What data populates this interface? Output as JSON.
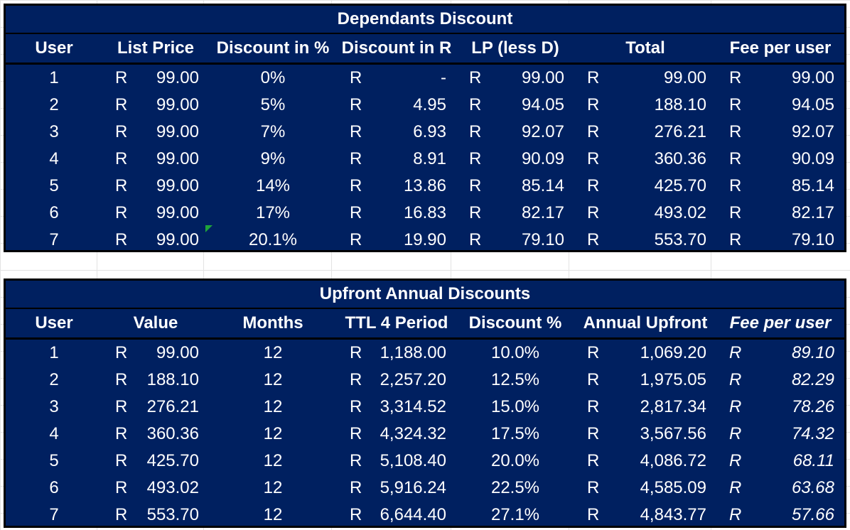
{
  "dependants": {
    "title": "Dependants Discount",
    "headers": [
      "User",
      "List Price",
      "Discount in %",
      "Discount in R",
      "LP (less D)",
      "Total",
      "Fee per user"
    ],
    "currency": "R",
    "rows": [
      {
        "user": "1",
        "list_price": "99.00",
        "discount_pct": "0%",
        "discount_r": "-",
        "lp_less_d": "99.00",
        "total": "99.00",
        "fee": "99.00"
      },
      {
        "user": "2",
        "list_price": "99.00",
        "discount_pct": "5%",
        "discount_r": "4.95",
        "lp_less_d": "94.05",
        "total": "188.10",
        "fee": "94.05"
      },
      {
        "user": "3",
        "list_price": "99.00",
        "discount_pct": "7%",
        "discount_r": "6.93",
        "lp_less_d": "92.07",
        "total": "276.21",
        "fee": "92.07"
      },
      {
        "user": "4",
        "list_price": "99.00",
        "discount_pct": "9%",
        "discount_r": "8.91",
        "lp_less_d": "90.09",
        "total": "360.36",
        "fee": "90.09"
      },
      {
        "user": "5",
        "list_price": "99.00",
        "discount_pct": "14%",
        "discount_r": "13.86",
        "lp_less_d": "85.14",
        "total": "425.70",
        "fee": "85.14"
      },
      {
        "user": "6",
        "list_price": "99.00",
        "discount_pct": "17%",
        "discount_r": "16.83",
        "lp_less_d": "82.17",
        "total": "493.02",
        "fee": "82.17"
      },
      {
        "user": "7",
        "list_price": "99.00",
        "discount_pct": "20.1%",
        "discount_r": "19.90",
        "lp_less_d": "79.10",
        "total": "553.70",
        "fee": "79.10"
      }
    ]
  },
  "upfront": {
    "title": "Upfront Annual Discounts",
    "headers": [
      "User",
      "Value",
      "Months",
      "TTL 4 Period",
      "Discount %",
      "Annual Upfront",
      "Fee per user"
    ],
    "currency": "R",
    "rows": [
      {
        "user": "1",
        "value": "99.00",
        "months": "12",
        "ttl": "1,188.00",
        "discount_pct": "10.0%",
        "annual": "1,069.20",
        "fee": "89.10"
      },
      {
        "user": "2",
        "value": "188.10",
        "months": "12",
        "ttl": "2,257.20",
        "discount_pct": "12.5%",
        "annual": "1,975.05",
        "fee": "82.29"
      },
      {
        "user": "3",
        "value": "276.21",
        "months": "12",
        "ttl": "3,314.52",
        "discount_pct": "15.0%",
        "annual": "2,817.34",
        "fee": "78.26"
      },
      {
        "user": "4",
        "value": "360.36",
        "months": "12",
        "ttl": "4,324.32",
        "discount_pct": "17.5%",
        "annual": "3,567.56",
        "fee": "74.32"
      },
      {
        "user": "5",
        "value": "425.70",
        "months": "12",
        "ttl": "5,108.40",
        "discount_pct": "20.0%",
        "annual": "4,086.72",
        "fee": "68.11"
      },
      {
        "user": "6",
        "value": "493.02",
        "months": "12",
        "ttl": "5,916.24",
        "discount_pct": "22.5%",
        "annual": "4,585.09",
        "fee": "63.68"
      },
      {
        "user": "7",
        "value": "553.70",
        "months": "12",
        "ttl": "6,644.40",
        "discount_pct": "27.1%",
        "annual": "4,843.77",
        "fee": "57.66"
      }
    ]
  },
  "colors": {
    "table_bg": "#002060",
    "text": "#ffffff",
    "border": "#000000"
  }
}
